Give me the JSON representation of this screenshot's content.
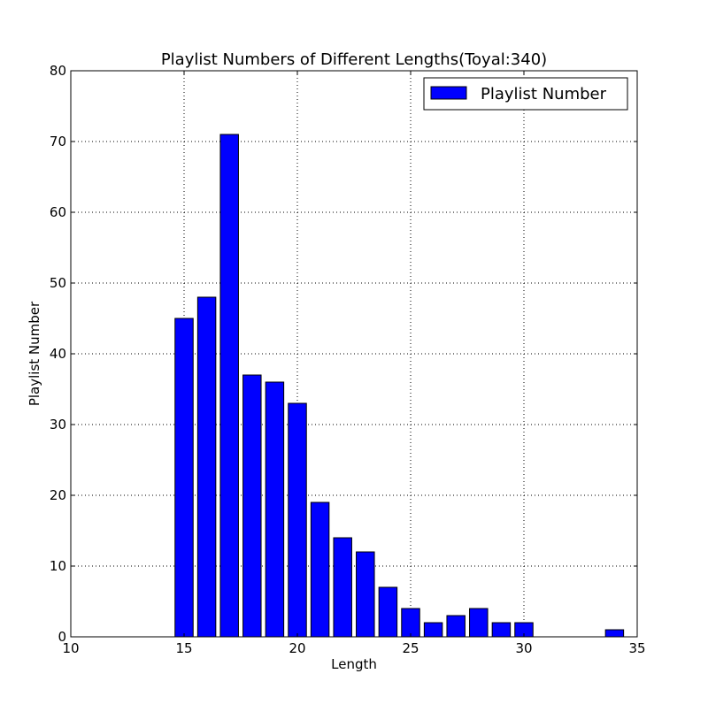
{
  "chart_data": {
    "type": "bar",
    "title": "Playlist Numbers of Different Lengths(Toyal:340)",
    "xlabel": "Length",
    "ylabel": "Playlist Number",
    "xlim": [
      10,
      35
    ],
    "ylim": [
      0,
      80
    ],
    "xticks": [
      "10",
      "15",
      "20",
      "25",
      "30",
      "35"
    ],
    "yticks": [
      "0",
      "10",
      "20",
      "30",
      "40",
      "50",
      "60",
      "70",
      "80"
    ],
    "grid": true,
    "legend_position": "top-right",
    "series": [
      {
        "name": "Playlist Number",
        "color": "#0000ff",
        "x": [
          15,
          16,
          17,
          18,
          19,
          20,
          21,
          22,
          23,
          24,
          25,
          26,
          27,
          28,
          29,
          30,
          34
        ],
        "values": [
          45,
          48,
          71,
          37,
          36,
          33,
          19,
          14,
          12,
          7,
          4,
          2,
          3,
          4,
          2,
          2,
          1
        ]
      }
    ]
  }
}
